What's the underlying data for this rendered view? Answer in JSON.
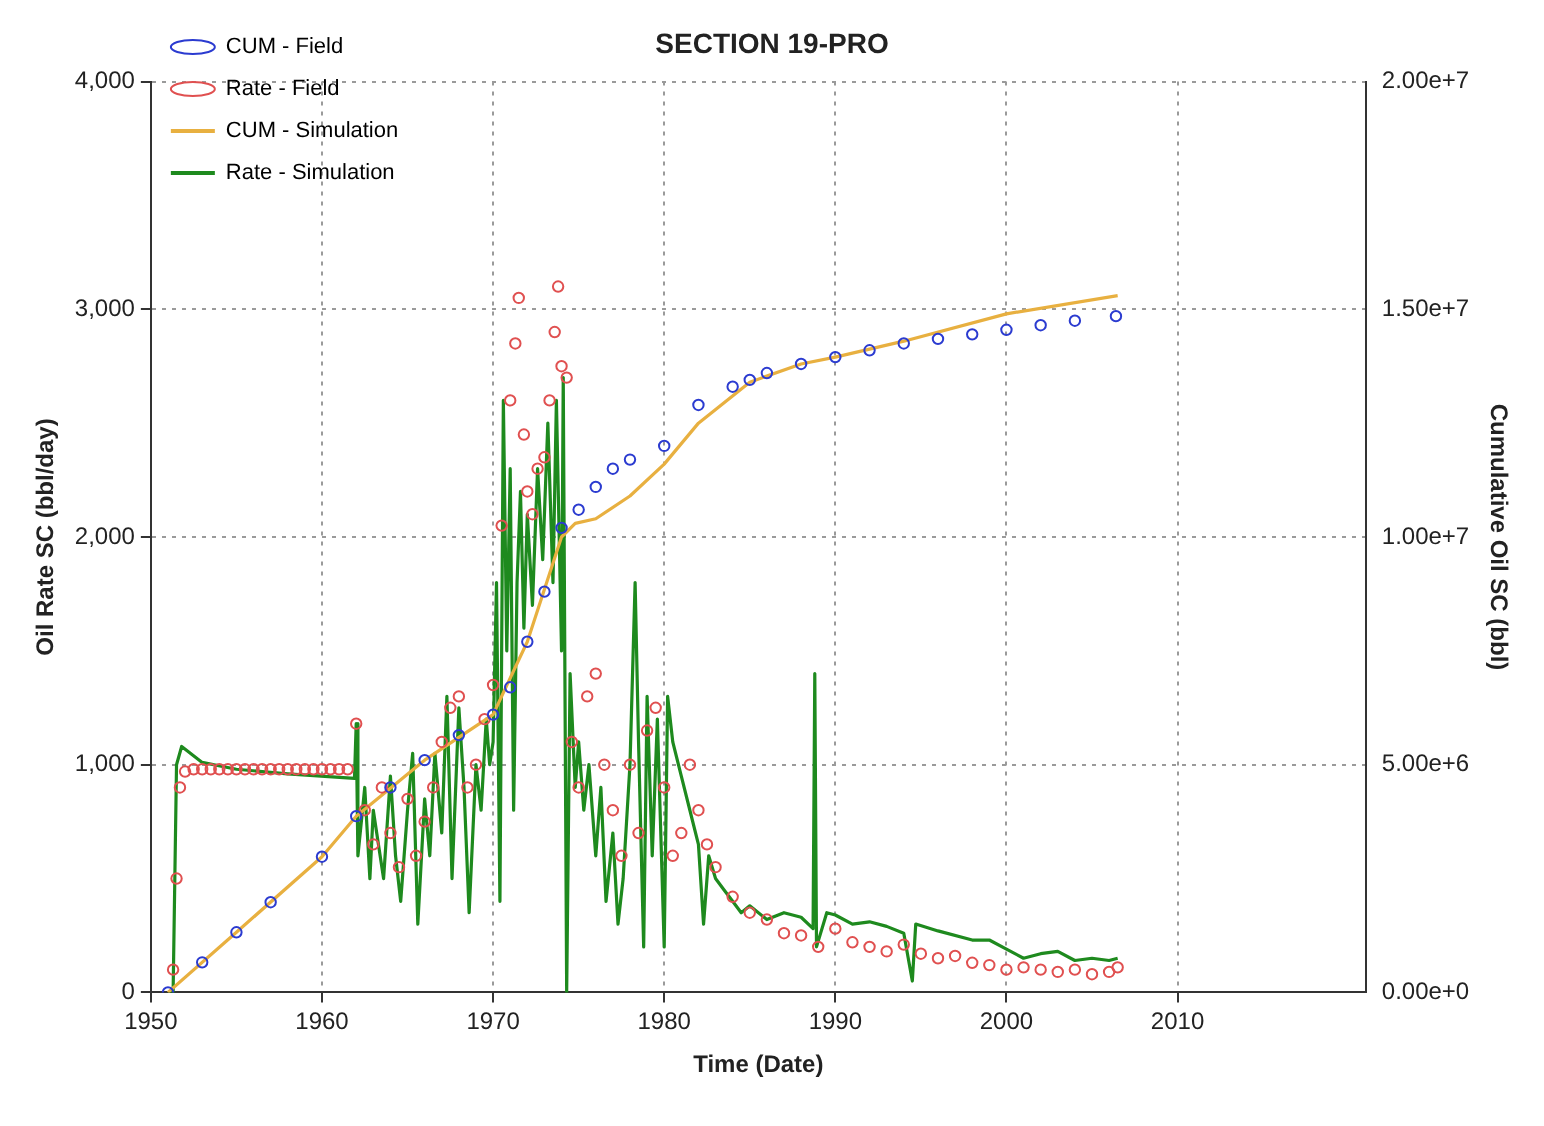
{
  "chart_data": {
    "type": "line",
    "title": "SECTION 19-PRO",
    "xlabel": "Time (Date)",
    "ylabel": "Oil Rate SC (bbl/day)",
    "y2label": "Cumulative Oil SC (bbl)",
    "xlim": [
      1950,
      2021
    ],
    "xticks": [
      1950,
      1960,
      1970,
      1980,
      1990,
      2000,
      2010
    ],
    "ylim": [
      0,
      4000
    ],
    "yticks": [
      {
        "value": 0,
        "label": "0"
      },
      {
        "value": 1000,
        "label": "1,000"
      },
      {
        "value": 2000,
        "label": "2,000"
      },
      {
        "value": 3000,
        "label": "3,000"
      },
      {
        "value": 4000,
        "label": "4,000"
      }
    ],
    "y2lim": [
      0,
      20000000
    ],
    "y2ticks": [
      {
        "value": 0,
        "label": "0.00e+0"
      },
      {
        "value": 5000000,
        "label": "5.00e+6"
      },
      {
        "value": 10000000,
        "label": "1.00e+7"
      },
      {
        "value": 15000000,
        "label": "1.50e+7"
      },
      {
        "value": 20000000,
        "label": "2.00e+7"
      }
    ],
    "grid": true,
    "legend": "top left",
    "line_style": "solid",
    "series": [
      {
        "name": "CUM - Field",
        "type": "scatter",
        "marker": "circle",
        "axis": "y2",
        "color": "#2b3bd0",
        "x": [
          1951,
          1953,
          1955,
          1957,
          1960,
          1962,
          1964,
          1966,
          1968,
          1970,
          1971,
          1972,
          1973,
          1974,
          1975,
          1976,
          1977,
          1978,
          1980,
          1982,
          1984,
          1985,
          1986,
          1988,
          1990,
          1992,
          1994,
          1996,
          1998,
          2000,
          2002,
          2004,
          2006.4
        ],
        "values": [
          0,
          660000,
          1320000,
          1980000,
          2980000,
          3870000,
          4500000,
          5100000,
          5650000,
          6100000,
          6700000,
          7700000,
          8800000,
          10200000,
          10600000,
          11100000,
          11500000,
          11700000,
          12000000,
          12900000,
          13300000,
          13450000,
          13600000,
          13800000,
          13950000,
          14100000,
          14250000,
          14350000,
          14450000,
          14550000,
          14650000,
          14750000,
          14850000
        ]
      },
      {
        "name": "Rate - Field",
        "type": "scatter",
        "marker": "circle",
        "color": "#e05050",
        "x": [
          1951.3,
          1951.5,
          1951.7,
          1952,
          1952.5,
          1953,
          1953.5,
          1954,
          1954.5,
          1955,
          1955.5,
          1956,
          1956.5,
          1957,
          1957.5,
          1958,
          1958.5,
          1959,
          1959.5,
          1960,
          1960.5,
          1961,
          1961.5,
          1962,
          1962.5,
          1963,
          1963.5,
          1964,
          1964.5,
          1965,
          1965.5,
          1966,
          1966.5,
          1967,
          1967.5,
          1968,
          1968.5,
          1969,
          1969.5,
          1970,
          1970.5,
          1971,
          1971.3,
          1971.5,
          1971.8,
          1972,
          1972.3,
          1972.6,
          1973,
          1973.3,
          1973.6,
          1973.8,
          1974,
          1974.3,
          1974.6,
          1975,
          1975.5,
          1976,
          1976.5,
          1977,
          1977.5,
          1978,
          1978.5,
          1979,
          1979.5,
          1980,
          1980.5,
          1981,
          1981.5,
          1982,
          1982.5,
          1983,
          1984,
          1985,
          1986,
          1987,
          1988,
          1989,
          1990,
          1991,
          1992,
          1993,
          1994,
          1995,
          1996,
          1997,
          1998,
          1999,
          2000,
          2001,
          2002,
          2003,
          2004,
          2005,
          2006,
          2006.5
        ],
        "values": [
          100,
          500,
          900,
          970,
          980,
          980,
          980,
          980,
          980,
          980,
          980,
          980,
          980,
          980,
          980,
          980,
          980,
          980,
          980,
          980,
          980,
          980,
          980,
          1180,
          800,
          650,
          900,
          700,
          550,
          850,
          600,
          750,
          900,
          1100,
          1250,
          1300,
          900,
          1000,
          1200,
          1350,
          2050,
          2600,
          2850,
          3050,
          2450,
          2200,
          2100,
          2300,
          2350,
          2600,
          2900,
          3100,
          2750,
          2700,
          1100,
          900,
          1300,
          1400,
          1000,
          800,
          600,
          1000,
          700,
          1150,
          1250,
          900,
          600,
          700,
          1000,
          800,
          650,
          550,
          420,
          350,
          320,
          260,
          250,
          200,
          280,
          220,
          200,
          180,
          210,
          170,
          150,
          160,
          130,
          120,
          100,
          110,
          100,
          90,
          100,
          80,
          90,
          110
        ]
      },
      {
        "name": "CUM - Simulation",
        "type": "line",
        "marker": "none",
        "axis": "y2",
        "color": "#e8b040",
        "x": [
          1951,
          1955,
          1960,
          1962,
          1966,
          1970,
          1972,
          1974,
          1974.8,
          1976,
          1978,
          1980,
          1982,
          1985,
          1988,
          1990,
          1994,
          2000,
          2006.5
        ],
        "values": [
          0,
          1320000,
          2980000,
          3870000,
          5100000,
          6100000,
          7700000,
          10000000,
          10300000,
          10400000,
          10900000,
          11600000,
          12500000,
          13400000,
          13800000,
          13950000,
          14300000,
          14900000,
          15300000
        ]
      },
      {
        "name": "Rate - Simulation",
        "type": "line",
        "marker": "none",
        "color": "#1e8a1e",
        "x": [
          1951,
          1951.3,
          1951.5,
          1951.8,
          1953,
          1955,
          1958,
          1961.9,
          1962,
          1962.1,
          1962.5,
          1962.8,
          1963,
          1963.3,
          1963.6,
          1964,
          1964.3,
          1964.6,
          1965,
          1965.3,
          1965.6,
          1966,
          1966.3,
          1966.6,
          1967,
          1967.3,
          1967.6,
          1968,
          1968.3,
          1968.6,
          1969,
          1969.3,
          1969.6,
          1969.8,
          1970,
          1970.2,
          1970.4,
          1970.6,
          1970.8,
          1971,
          1971.2,
          1971.4,
          1971.6,
          1971.8,
          1972,
          1972.3,
          1972.6,
          1972.9,
          1973.2,
          1973.5,
          1973.7,
          1974,
          1974.1,
          1974.3,
          1974.5,
          1974.8,
          1975,
          1975.3,
          1975.6,
          1976,
          1976.3,
          1976.6,
          1977,
          1977.3,
          1977.6,
          1978,
          1978.3,
          1978.5,
          1978.8,
          1979,
          1979.3,
          1979.6,
          1980,
          1980.2,
          1980.5,
          1981,
          1981.5,
          1982,
          1982.3,
          1982.6,
          1983,
          1983.5,
          1984,
          1984.5,
          1985,
          1986,
          1987,
          1988,
          1988.7,
          1988.8,
          1988.9,
          1989.5,
          1990,
          1991,
          1992,
          1993,
          1994,
          1994.5,
          1994.7,
          1996,
          1998,
          1999,
          2000,
          2001,
          2002,
          2003,
          2004,
          2005,
          2006,
          2006.5
        ],
        "values": [
          0,
          0,
          1000,
          1080,
          1010,
          980,
          960,
          940,
          1180,
          600,
          900,
          500,
          800,
          650,
          500,
          950,
          600,
          400,
          800,
          1050,
          300,
          850,
          600,
          1050,
          700,
          1300,
          500,
          1250,
          900,
          350,
          1000,
          800,
          1200,
          1000,
          1100,
          1800,
          400,
          2600,
          1500,
          2300,
          800,
          1800,
          2200,
          1600,
          2100,
          1700,
          2300,
          1900,
          2500,
          1800,
          2600,
          1500,
          2700,
          0,
          1400,
          900,
          1100,
          800,
          1000,
          600,
          900,
          400,
          700,
          300,
          500,
          1000,
          1800,
          1100,
          200,
          1300,
          600,
          1200,
          200,
          1300,
          1100,
          950,
          800,
          650,
          300,
          600,
          500,
          450,
          400,
          350,
          380,
          320,
          350,
          330,
          280,
          1400,
          200,
          350,
          340,
          300,
          310,
          290,
          260,
          50,
          300,
          270,
          230,
          230,
          190,
          150,
          170,
          180,
          140,
          150,
          140,
          150
        ]
      }
    ]
  }
}
